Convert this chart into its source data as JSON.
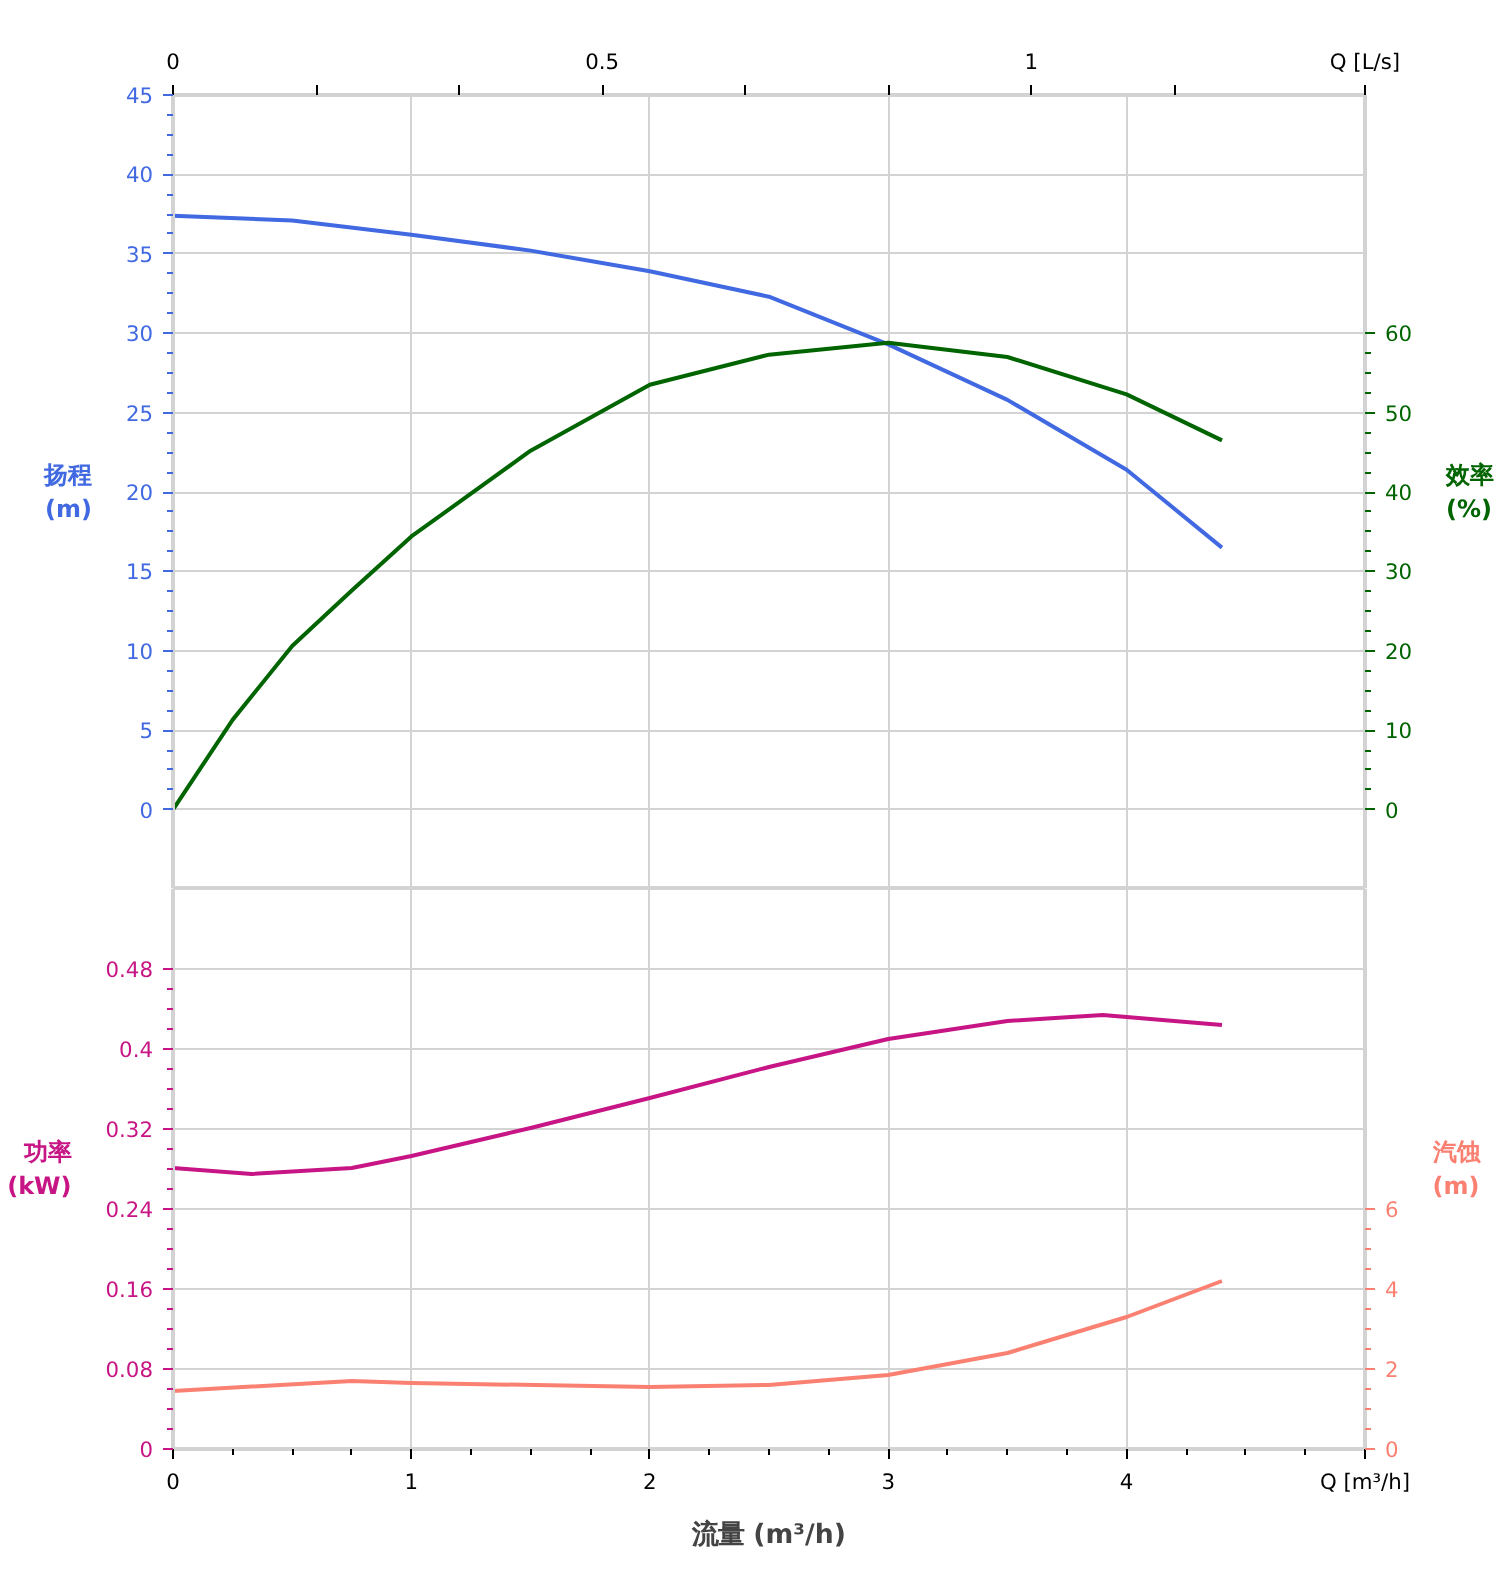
{
  "chart_data": [
    {
      "type": "line",
      "ylabel": "扬程 (m)",
      "y2label": "效率 (%)",
      "xlim": [
        0,
        5
      ],
      "xticks": [
        0,
        1,
        2,
        3,
        4,
        5
      ],
      "tick_labels": "y",
      "x2lim": [
        0,
        1.3889
      ],
      "x2ticks": [
        0,
        {
          "value": 0.1667,
          "label": null
        },
        {
          "value": 0.3333,
          "label": null
        },
        0.5,
        {
          "value": 0.6667,
          "label": null
        },
        {
          "value": 0.8333,
          "label": null
        },
        1,
        {
          "value": 1.1667,
          "label": null
        },
        {
          "value": 1.3889,
          "label": "Q [L/s]"
        }
      ],
      "ylim": [
        -5,
        45
      ],
      "yticks": [
        0,
        5,
        10,
        15,
        20,
        25,
        30,
        35,
        40,
        45
      ],
      "y2lim": [
        -10,
        90
      ],
      "y2ticks": [
        0,
        10,
        20,
        30,
        40,
        50,
        60
      ],
      "grid": true,
      "marker": "none",
      "line_style": "solid",
      "series": [
        {
          "color": "#4169e1",
          "axis": "y",
          "x": [
            0,
            0.5,
            1,
            1.5,
            2,
            2.5,
            3,
            3.5,
            4,
            4.4
          ],
          "values": [
            37.4,
            37.1,
            36.2,
            35.2,
            33.9,
            32.3,
            29.3,
            25.8,
            21.4,
            16.5
          ]
        },
        {
          "color": "#006400",
          "axis": "y2",
          "x": [
            0,
            0.25,
            0.5,
            0.75,
            1,
            1.5,
            2,
            2.5,
            3,
            3.5,
            4,
            4.4
          ],
          "values": [
            0,
            11.3,
            20.6,
            27.6,
            34.4,
            45.2,
            53.5,
            57.3,
            58.8,
            57,
            52.3,
            46.5
          ]
        }
      ]
    },
    {
      "type": "line",
      "xlabel": "流量 (m³/h)",
      "ylabel": "功率 (kW)",
      "y2label": "汽蚀 (m)",
      "xlim": [
        0,
        5
      ],
      "xticks": [
        0,
        1,
        2,
        3,
        4,
        {
          "value": 5,
          "label": "Q [m³/h]"
        }
      ],
      "ylim": [
        0,
        0.56
      ],
      "yticks": [
        0,
        0.08,
        0.16,
        0.24,
        0.32,
        0.4,
        0.48
      ],
      "y2lim": [
        0,
        14
      ],
      "y2ticks": [
        0,
        2,
        4,
        6
      ],
      "grid": true,
      "marker": "none",
      "line_style": "solid",
      "series": [
        {
          "color": "#c71585",
          "axis": "y",
          "x": [
            0,
            0.33,
            0.75,
            1,
            1.5,
            2,
            2.5,
            3,
            3.5,
            3.9,
            4.4
          ],
          "values": [
            0.281,
            0.275,
            0.281,
            0.293,
            0.321,
            0.351,
            0.382,
            0.41,
            0.428,
            0.434,
            0.424
          ]
        },
        {
          "color": "#fa8072",
          "axis": "y2",
          "x": [
            0,
            0.75,
            1,
            2,
            2.5,
            3,
            3.5,
            4,
            4.4
          ],
          "values": [
            1.45,
            1.7,
            1.65,
            1.55,
            1.6,
            1.85,
            2.4,
            3.3,
            4.2
          ]
        }
      ]
    }
  ]
}
